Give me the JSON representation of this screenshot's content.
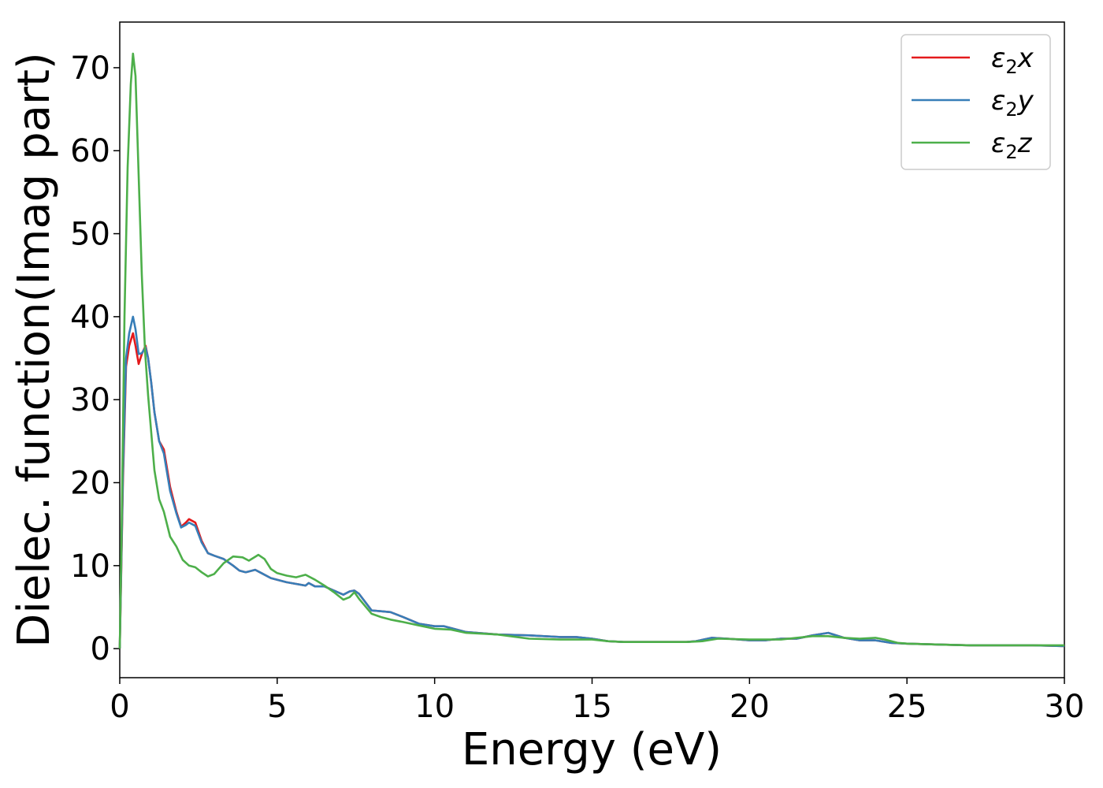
{
  "chart_data": {
    "type": "line",
    "xlabel": "Energy (eV)",
    "ylabel": "Dielec. function(Imag part)",
    "xlim": [
      0,
      30
    ],
    "ylim": [
      -3.5,
      75.5
    ],
    "xticks": [
      0,
      5,
      10,
      15,
      20,
      25,
      30
    ],
    "yticks": [
      0,
      10,
      20,
      30,
      40,
      50,
      60,
      70
    ],
    "grid": false,
    "legend_position": "top-right",
    "series": [
      {
        "name": "ε₂x",
        "legend_base": "ε",
        "legend_sub": "2",
        "legend_var": "x",
        "color": "#e41a1c",
        "points": [
          [
            0,
            0
          ],
          [
            0.1,
            20
          ],
          [
            0.2,
            34
          ],
          [
            0.3,
            36.5
          ],
          [
            0.42,
            38
          ],
          [
            0.5,
            36.5
          ],
          [
            0.6,
            34.3
          ],
          [
            0.7,
            35.5
          ],
          [
            0.82,
            36.5
          ],
          [
            0.9,
            35
          ],
          [
            1.0,
            32
          ],
          [
            1.1,
            28.5
          ],
          [
            1.25,
            25
          ],
          [
            1.4,
            24
          ],
          [
            1.6,
            19.5
          ],
          [
            1.8,
            16.5
          ],
          [
            1.95,
            14.7
          ],
          [
            2.1,
            15.2
          ],
          [
            2.2,
            15.6
          ],
          [
            2.4,
            15.2
          ],
          [
            2.6,
            13
          ],
          [
            2.8,
            11.5
          ],
          [
            3.0,
            11.2
          ],
          [
            3.3,
            10.8
          ],
          [
            3.6,
            10
          ],
          [
            3.8,
            9.4
          ],
          [
            4.0,
            9.2
          ],
          [
            4.3,
            9.5
          ],
          [
            4.5,
            9.1
          ],
          [
            4.8,
            8.5
          ],
          [
            5.0,
            8.3
          ],
          [
            5.3,
            8
          ],
          [
            5.6,
            7.8
          ],
          [
            5.9,
            7.6
          ],
          [
            6.0,
            7.9
          ],
          [
            6.2,
            7.5
          ],
          [
            6.5,
            7.5
          ],
          [
            6.8,
            7
          ],
          [
            7.1,
            6.5
          ],
          [
            7.3,
            6.9
          ],
          [
            7.45,
            7
          ],
          [
            7.6,
            6.6
          ],
          [
            8.0,
            4.6
          ],
          [
            8.3,
            4.5
          ],
          [
            8.6,
            4.4
          ],
          [
            9.0,
            3.8
          ],
          [
            9.5,
            3
          ],
          [
            10.0,
            2.7
          ],
          [
            10.3,
            2.7
          ],
          [
            10.6,
            2.4
          ],
          [
            11.0,
            2
          ],
          [
            12.0,
            1.7
          ],
          [
            13.0,
            1.6
          ],
          [
            14.0,
            1.4
          ],
          [
            14.5,
            1.4
          ],
          [
            15.0,
            1.2
          ],
          [
            15.5,
            0.9
          ],
          [
            16.0,
            0.8
          ],
          [
            17.0,
            0.8
          ],
          [
            18.0,
            0.8
          ],
          [
            18.3,
            0.9
          ],
          [
            18.8,
            1.3
          ],
          [
            19.3,
            1.2
          ],
          [
            20.0,
            1
          ],
          [
            20.5,
            1
          ],
          [
            21.0,
            1.2
          ],
          [
            21.5,
            1.2
          ],
          [
            22.0,
            1.6
          ],
          [
            22.5,
            1.9
          ],
          [
            23.0,
            1.3
          ],
          [
            23.5,
            1
          ],
          [
            24.0,
            1
          ],
          [
            24.5,
            0.7
          ],
          [
            25.0,
            0.6
          ],
          [
            26.0,
            0.5
          ],
          [
            27.0,
            0.4
          ],
          [
            28.0,
            0.4
          ],
          [
            29.0,
            0.4
          ],
          [
            30.0,
            0.3
          ]
        ]
      },
      {
        "name": "ε₂y",
        "legend_base": "ε",
        "legend_sub": "2",
        "legend_var": "y",
        "color": "#377eb8",
        "points": [
          [
            0,
            0
          ],
          [
            0.1,
            21
          ],
          [
            0.2,
            35
          ],
          [
            0.3,
            38
          ],
          [
            0.42,
            40
          ],
          [
            0.5,
            38.5
          ],
          [
            0.6,
            35.5
          ],
          [
            0.7,
            35.6
          ],
          [
            0.82,
            36.3
          ],
          [
            0.9,
            35
          ],
          [
            1.0,
            32
          ],
          [
            1.1,
            28.5
          ],
          [
            1.25,
            25
          ],
          [
            1.4,
            23.5
          ],
          [
            1.6,
            19
          ],
          [
            1.8,
            16.3
          ],
          [
            1.95,
            14.6
          ],
          [
            2.1,
            14.9
          ],
          [
            2.2,
            15.2
          ],
          [
            2.4,
            14.8
          ],
          [
            2.6,
            12.8
          ],
          [
            2.8,
            11.5
          ],
          [
            3.0,
            11.2
          ],
          [
            3.3,
            10.8
          ],
          [
            3.6,
            10
          ],
          [
            3.8,
            9.4
          ],
          [
            4.0,
            9.2
          ],
          [
            4.3,
            9.5
          ],
          [
            4.5,
            9.1
          ],
          [
            4.8,
            8.5
          ],
          [
            5.0,
            8.3
          ],
          [
            5.3,
            8
          ],
          [
            5.6,
            7.8
          ],
          [
            5.9,
            7.6
          ],
          [
            6.0,
            7.9
          ],
          [
            6.2,
            7.5
          ],
          [
            6.5,
            7.5
          ],
          [
            6.8,
            7
          ],
          [
            7.1,
            6.5
          ],
          [
            7.3,
            6.9
          ],
          [
            7.45,
            7
          ],
          [
            7.6,
            6.6
          ],
          [
            8.0,
            4.6
          ],
          [
            8.3,
            4.5
          ],
          [
            8.6,
            4.4
          ],
          [
            9.0,
            3.8
          ],
          [
            9.5,
            3
          ],
          [
            10.0,
            2.7
          ],
          [
            10.3,
            2.7
          ],
          [
            10.6,
            2.4
          ],
          [
            11.0,
            2
          ],
          [
            12.0,
            1.7
          ],
          [
            13.0,
            1.6
          ],
          [
            14.0,
            1.4
          ],
          [
            14.5,
            1.4
          ],
          [
            15.0,
            1.2
          ],
          [
            15.5,
            0.9
          ],
          [
            16.0,
            0.8
          ],
          [
            17.0,
            0.8
          ],
          [
            18.0,
            0.8
          ],
          [
            18.3,
            0.9
          ],
          [
            18.8,
            1.3
          ],
          [
            19.3,
            1.2
          ],
          [
            20.0,
            1
          ],
          [
            20.5,
            1
          ],
          [
            21.0,
            1.2
          ],
          [
            21.5,
            1.2
          ],
          [
            22.0,
            1.6
          ],
          [
            22.5,
            1.9
          ],
          [
            23.0,
            1.3
          ],
          [
            23.5,
            1
          ],
          [
            24.0,
            1
          ],
          [
            24.5,
            0.7
          ],
          [
            25.0,
            0.6
          ],
          [
            26.0,
            0.5
          ],
          [
            27.0,
            0.4
          ],
          [
            28.0,
            0.4
          ],
          [
            29.0,
            0.4
          ],
          [
            30.0,
            0.3
          ]
        ]
      },
      {
        "name": "ε₂z",
        "legend_base": "ε",
        "legend_sub": "2",
        "legend_var": "z",
        "color": "#4daf4a",
        "points": [
          [
            0,
            0
          ],
          [
            0.05,
            12
          ],
          [
            0.15,
            40
          ],
          [
            0.25,
            58
          ],
          [
            0.35,
            68
          ],
          [
            0.42,
            71.7
          ],
          [
            0.5,
            69
          ],
          [
            0.6,
            57
          ],
          [
            0.7,
            45
          ],
          [
            0.8,
            36
          ],
          [
            0.9,
            30.5
          ],
          [
            1.0,
            26
          ],
          [
            1.1,
            21.5
          ],
          [
            1.25,
            18
          ],
          [
            1.4,
            16.5
          ],
          [
            1.6,
            13.5
          ],
          [
            1.8,
            12.3
          ],
          [
            2.0,
            10.7
          ],
          [
            2.2,
            10
          ],
          [
            2.4,
            9.8
          ],
          [
            2.6,
            9.2
          ],
          [
            2.8,
            8.7
          ],
          [
            3.0,
            9
          ],
          [
            3.3,
            10.3
          ],
          [
            3.6,
            11.1
          ],
          [
            3.9,
            11
          ],
          [
            4.1,
            10.6
          ],
          [
            4.4,
            11.3
          ],
          [
            4.6,
            10.8
          ],
          [
            4.8,
            9.6
          ],
          [
            5.0,
            9.1
          ],
          [
            5.3,
            8.8
          ],
          [
            5.6,
            8.6
          ],
          [
            5.9,
            8.9
          ],
          [
            6.2,
            8.3
          ],
          [
            6.5,
            7.6
          ],
          [
            6.8,
            6.8
          ],
          [
            7.1,
            5.9
          ],
          [
            7.3,
            6.2
          ],
          [
            7.45,
            6.8
          ],
          [
            7.6,
            6
          ],
          [
            8.0,
            4.2
          ],
          [
            8.3,
            3.8
          ],
          [
            8.6,
            3.5
          ],
          [
            9.0,
            3.2
          ],
          [
            9.5,
            2.8
          ],
          [
            10.0,
            2.4
          ],
          [
            10.5,
            2.3
          ],
          [
            11.0,
            1.9
          ],
          [
            12.0,
            1.7
          ],
          [
            13.0,
            1.2
          ],
          [
            14.0,
            1.1
          ],
          [
            15.0,
            1.1
          ],
          [
            15.5,
            0.9
          ],
          [
            16.0,
            0.8
          ],
          [
            17.0,
            0.8
          ],
          [
            18.0,
            0.8
          ],
          [
            18.5,
            0.9
          ],
          [
            19.0,
            1.2
          ],
          [
            20.0,
            1.1
          ],
          [
            21.0,
            1.1
          ],
          [
            21.5,
            1.3
          ],
          [
            22.0,
            1.5
          ],
          [
            22.5,
            1.5
          ],
          [
            23.0,
            1.3
          ],
          [
            23.5,
            1.2
          ],
          [
            24.0,
            1.3
          ],
          [
            24.3,
            1.1
          ],
          [
            24.7,
            0.7
          ],
          [
            25.0,
            0.6
          ],
          [
            26.0,
            0.5
          ],
          [
            27.0,
            0.4
          ],
          [
            28.0,
            0.4
          ],
          [
            29.0,
            0.4
          ],
          [
            30.0,
            0.4
          ]
        ]
      }
    ]
  }
}
